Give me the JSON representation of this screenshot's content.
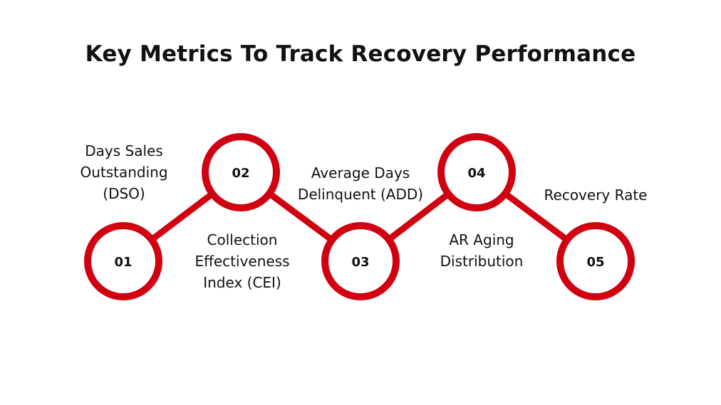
{
  "title": "Key Metrics To Track Recovery Performance",
  "colors": {
    "accent": "#d00010",
    "text": "#111111",
    "background": "#ffffff"
  },
  "steps": [
    {
      "number": "01",
      "label": "Days Sales\nOutstanding\n(DSO)"
    },
    {
      "number": "02",
      "label": "Collection\nEffectiveness\nIndex (CEI)"
    },
    {
      "number": "03",
      "label": "Average Days\nDelinquent (ADD)"
    },
    {
      "number": "04",
      "label": "AR Aging\nDistribution"
    },
    {
      "number": "05",
      "label": "Recovery Rate"
    }
  ]
}
